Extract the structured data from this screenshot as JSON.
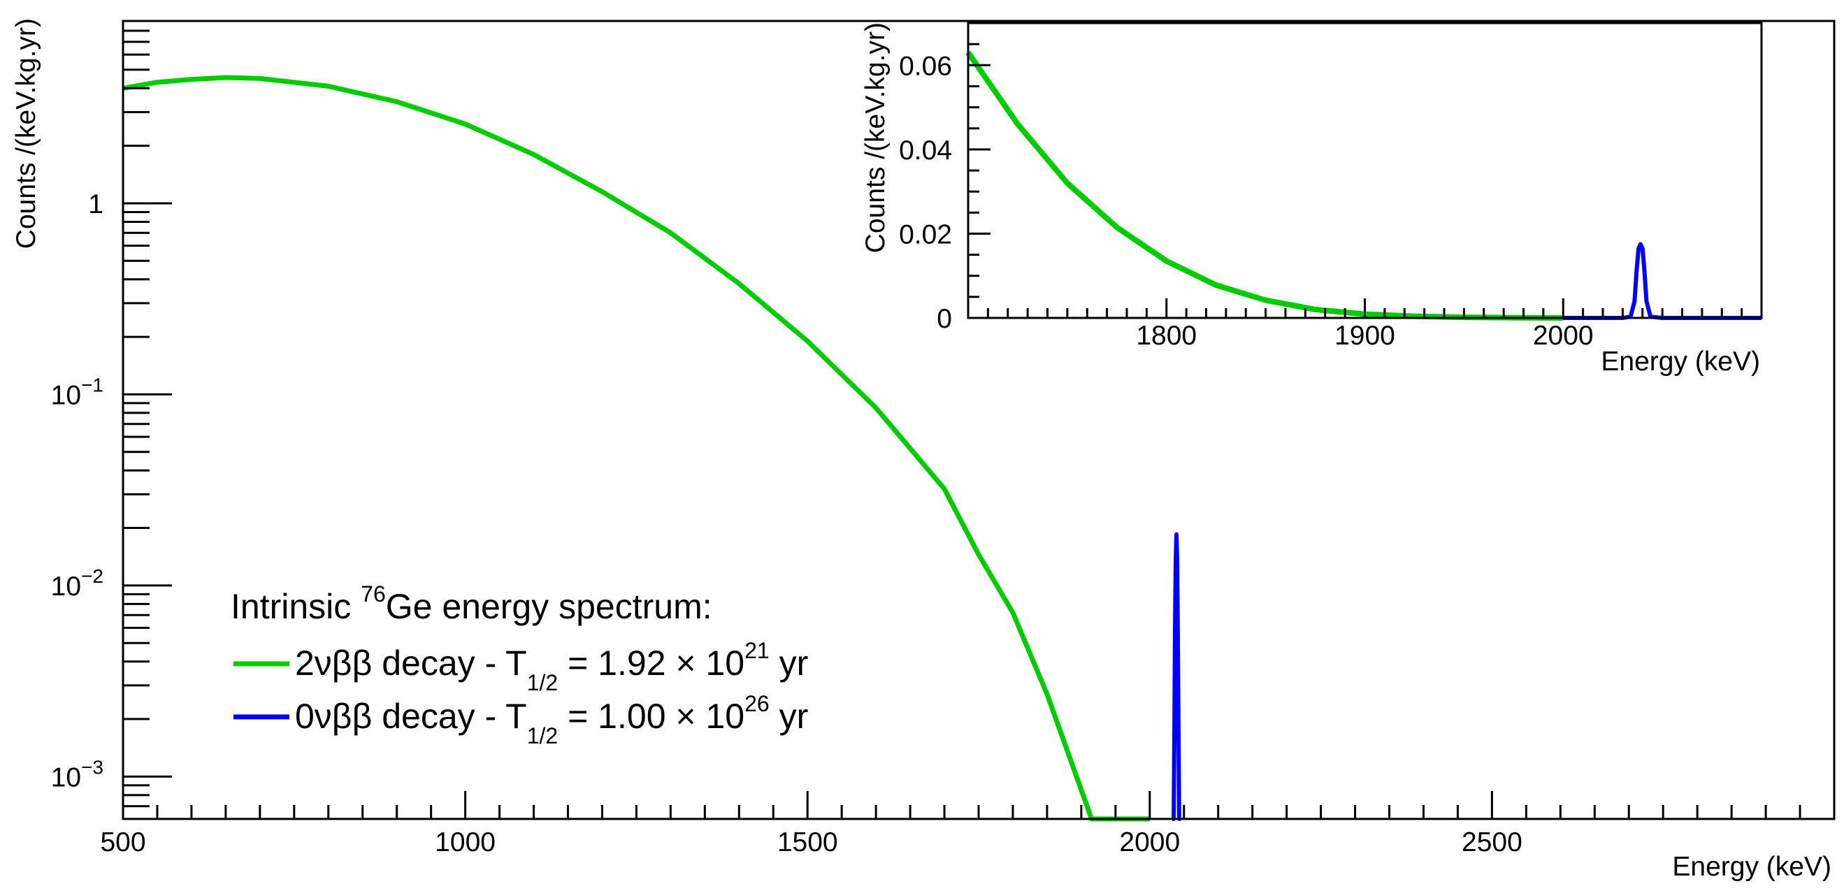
{
  "colors": {
    "two_nu": "#00cc00",
    "zero_nu": "#0000ff",
    "axis": "#000000",
    "background": "#ffffff"
  },
  "chart_data": [
    {
      "id": "main",
      "type": "line",
      "title": "",
      "xlabel": "Energy (keV)",
      "ylabel": "Counts /(keV.kg.yr)",
      "xlim": [
        500,
        3000
      ],
      "ylim": [
        0.0006,
        9
      ],
      "yscale": "log",
      "x_ticks": [
        500,
        1000,
        1500,
        2000,
        2500
      ],
      "x_tick_labels": [
        "500",
        "1000",
        "1500",
        "2000",
        "2500"
      ],
      "y_ticks": [
        0.001,
        0.01,
        0.1,
        1
      ],
      "y_tick_labels": [
        {
          "base": "10",
          "exp": "−3"
        },
        {
          "base": "10",
          "exp": "−2"
        },
        {
          "base": "10",
          "exp": "−1"
        },
        {
          "base": "1",
          "exp": ""
        }
      ],
      "series": [
        {
          "name": "2νββ decay",
          "color": "#00cc00",
          "x": [
            500,
            550,
            600,
            650,
            700,
            800,
            900,
            1000,
            1100,
            1200,
            1300,
            1400,
            1500,
            1600,
            1700,
            1750,
            1800,
            1850,
            1900,
            1915,
            2000
          ],
          "y": [
            4.0,
            4.3,
            4.45,
            4.55,
            4.5,
            4.1,
            3.4,
            2.6,
            1.8,
            1.15,
            0.7,
            0.38,
            0.19,
            0.085,
            0.032,
            0.0145,
            0.0072,
            0.0027,
            0.00085,
            0.0006,
            0.0006
          ]
        },
        {
          "name": "0νββ decay",
          "color": "#0000ff",
          "x": [
            2033,
            2035,
            2036,
            2037,
            2038,
            2039,
            2040,
            2041,
            2042,
            2043,
            2045
          ],
          "y": [
            0.0006,
            0.0006,
            0.0018,
            0.006,
            0.0135,
            0.0185,
            0.0135,
            0.006,
            0.0018,
            0.0006,
            0.0006
          ]
        }
      ],
      "legend": {
        "position": "bottom-left",
        "heading_prefix": "Intrinsic ",
        "heading_isotope_mass": "76",
        "heading_suffix": "Ge energy spectrum:",
        "entries": [
          {
            "series": "2νββ decay",
            "label_main": "2νββ decay - T",
            "half_sub": "1/2",
            "label_eq": " = 1.92 × 10",
            "exp": "21",
            "unit": " yr"
          },
          {
            "series": "0νββ decay",
            "label_main": "0νββ decay - T",
            "half_sub": "1/2",
            "label_eq": " = 1.00 × 10",
            "exp": "26",
            "unit": " yr"
          }
        ]
      }
    },
    {
      "id": "inset",
      "type": "line",
      "title": "",
      "xlabel": "Energy (keV)",
      "ylabel": "Counts /(keV.kg.yr)",
      "xlim": [
        1700,
        2100
      ],
      "ylim": [
        0,
        0.07
      ],
      "x_ticks": [
        1800,
        1900,
        2000
      ],
      "x_tick_labels": [
        "1800",
        "1900",
        "2000"
      ],
      "y_ticks": [
        0,
        0.02,
        0.04,
        0.06
      ],
      "y_tick_labels": [
        "0",
        "0.02",
        "0.04",
        "0.06"
      ],
      "series": [
        {
          "name": "2νββ decay",
          "color": "#00cc00",
          "x": [
            1700,
            1725,
            1750,
            1775,
            1800,
            1825,
            1850,
            1875,
            1900,
            1925,
            1950,
            1975,
            2000
          ],
          "y": [
            0.063,
            0.046,
            0.032,
            0.0215,
            0.0135,
            0.0078,
            0.0042,
            0.002,
            0.0009,
            0.0004,
            0.00015,
            5e-05,
            0.0
          ]
        },
        {
          "name": "0νββ decay",
          "color": "#0000ff",
          "x": [
            2000,
            2030,
            2034,
            2036,
            2037,
            2038,
            2039,
            2040,
            2041,
            2042,
            2044,
            2050,
            2100
          ],
          "y": [
            0,
            0,
            0.0003,
            0.004,
            0.011,
            0.0165,
            0.0175,
            0.0165,
            0.011,
            0.004,
            0.0003,
            0,
            0
          ]
        }
      ]
    }
  ]
}
